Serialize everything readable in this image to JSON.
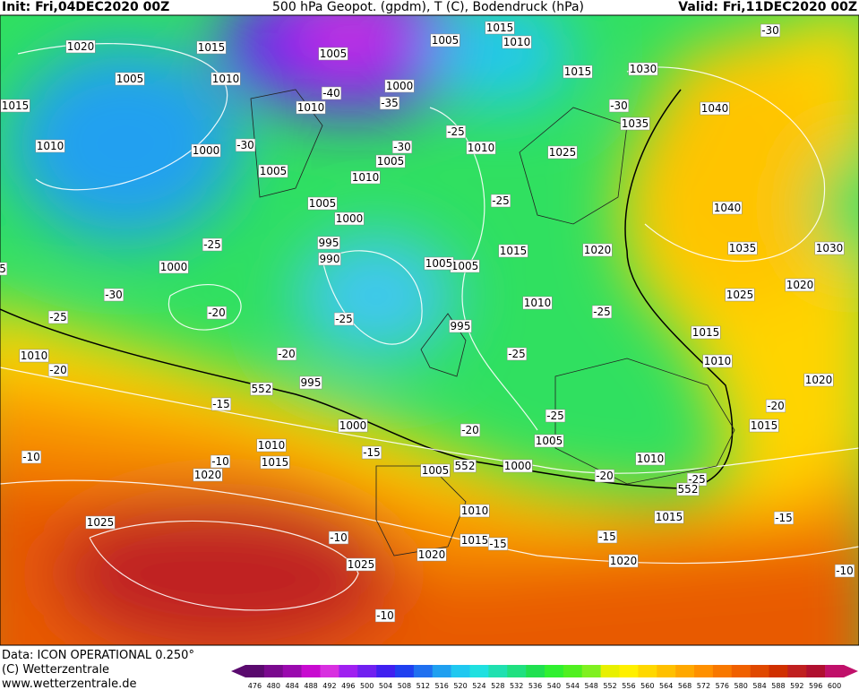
{
  "header": {
    "init": "Init: Fri,04DEC2020 00Z",
    "title": "500 hPa Geopot. (gpdm), T (C), Bodendruck (hPa)",
    "valid": "Valid: Fri,11DEC2020 00Z"
  },
  "map_labels": [
    1020,
    1005,
    1015,
    1010,
    1000,
    1015,
    1010,
    1010,
    1005,
    1005,
    1015,
    1010,
    1000,
    -35,
    -40,
    -30,
    -30,
    1005,
    1005,
    1010,
    1005,
    1000,
    995,
    990,
    -25,
    1000,
    -30,
    -25,
    -20,
    -25,
    -20,
    995,
    552,
    1010,
    -20,
    -15,
    1000,
    1010,
    1015,
    -15,
    1020,
    -10,
    -10,
    1025,
    -10,
    1025,
    1020,
    1010,
    1015,
    -15,
    1005,
    552,
    1000,
    -20,
    1010,
    -25,
    552,
    1015,
    -15,
    -15,
    1020,
    -10,
    -10,
    1005,
    -25,
    -20,
    -25,
    995,
    1010,
    1015,
    1005,
    1005,
    1020,
    -25,
    1015,
    1010,
    1020,
    -20,
    1015,
    1025,
    1020,
    1035,
    1030,
    1040,
    1040,
    1035,
    -30,
    1030,
    1025,
    1010,
    -25,
    -25,
    1015,
    -30,
    5
  ],
  "footer": {
    "data": "Data: ICON OPERATIONAL 0.250°",
    "copyright": "(C) Wetterzentrale",
    "url": "www.wetterzentrale.de"
  },
  "colorbar": {
    "values": [
      476,
      480,
      484,
      488,
      492,
      496,
      500,
      504,
      508,
      512,
      516,
      520,
      524,
      528,
      532,
      536,
      540,
      544,
      548,
      552,
      556,
      560,
      564,
      568,
      572,
      576,
      580,
      584,
      588,
      592,
      596,
      600
    ],
    "colors": [
      "#5a0a6e",
      "#7a0a8e",
      "#9a0aae",
      "#c80ad0",
      "#d830e0",
      "#a020f0",
      "#7020f0",
      "#4020f0",
      "#2040f0",
      "#2070f0",
      "#20a0f0",
      "#20c8f0",
      "#20e0e0",
      "#20e0b0",
      "#20e080",
      "#20e050",
      "#30f030",
      "#50f020",
      "#80f020",
      "#e8f000",
      "#fff000",
      "#ffd800",
      "#ffc000",
      "#ffa800",
      "#ff9000",
      "#f87800",
      "#f06000",
      "#e04800",
      "#d03000",
      "#c02020",
      "#b01030",
      "#c0106a"
    ]
  }
}
